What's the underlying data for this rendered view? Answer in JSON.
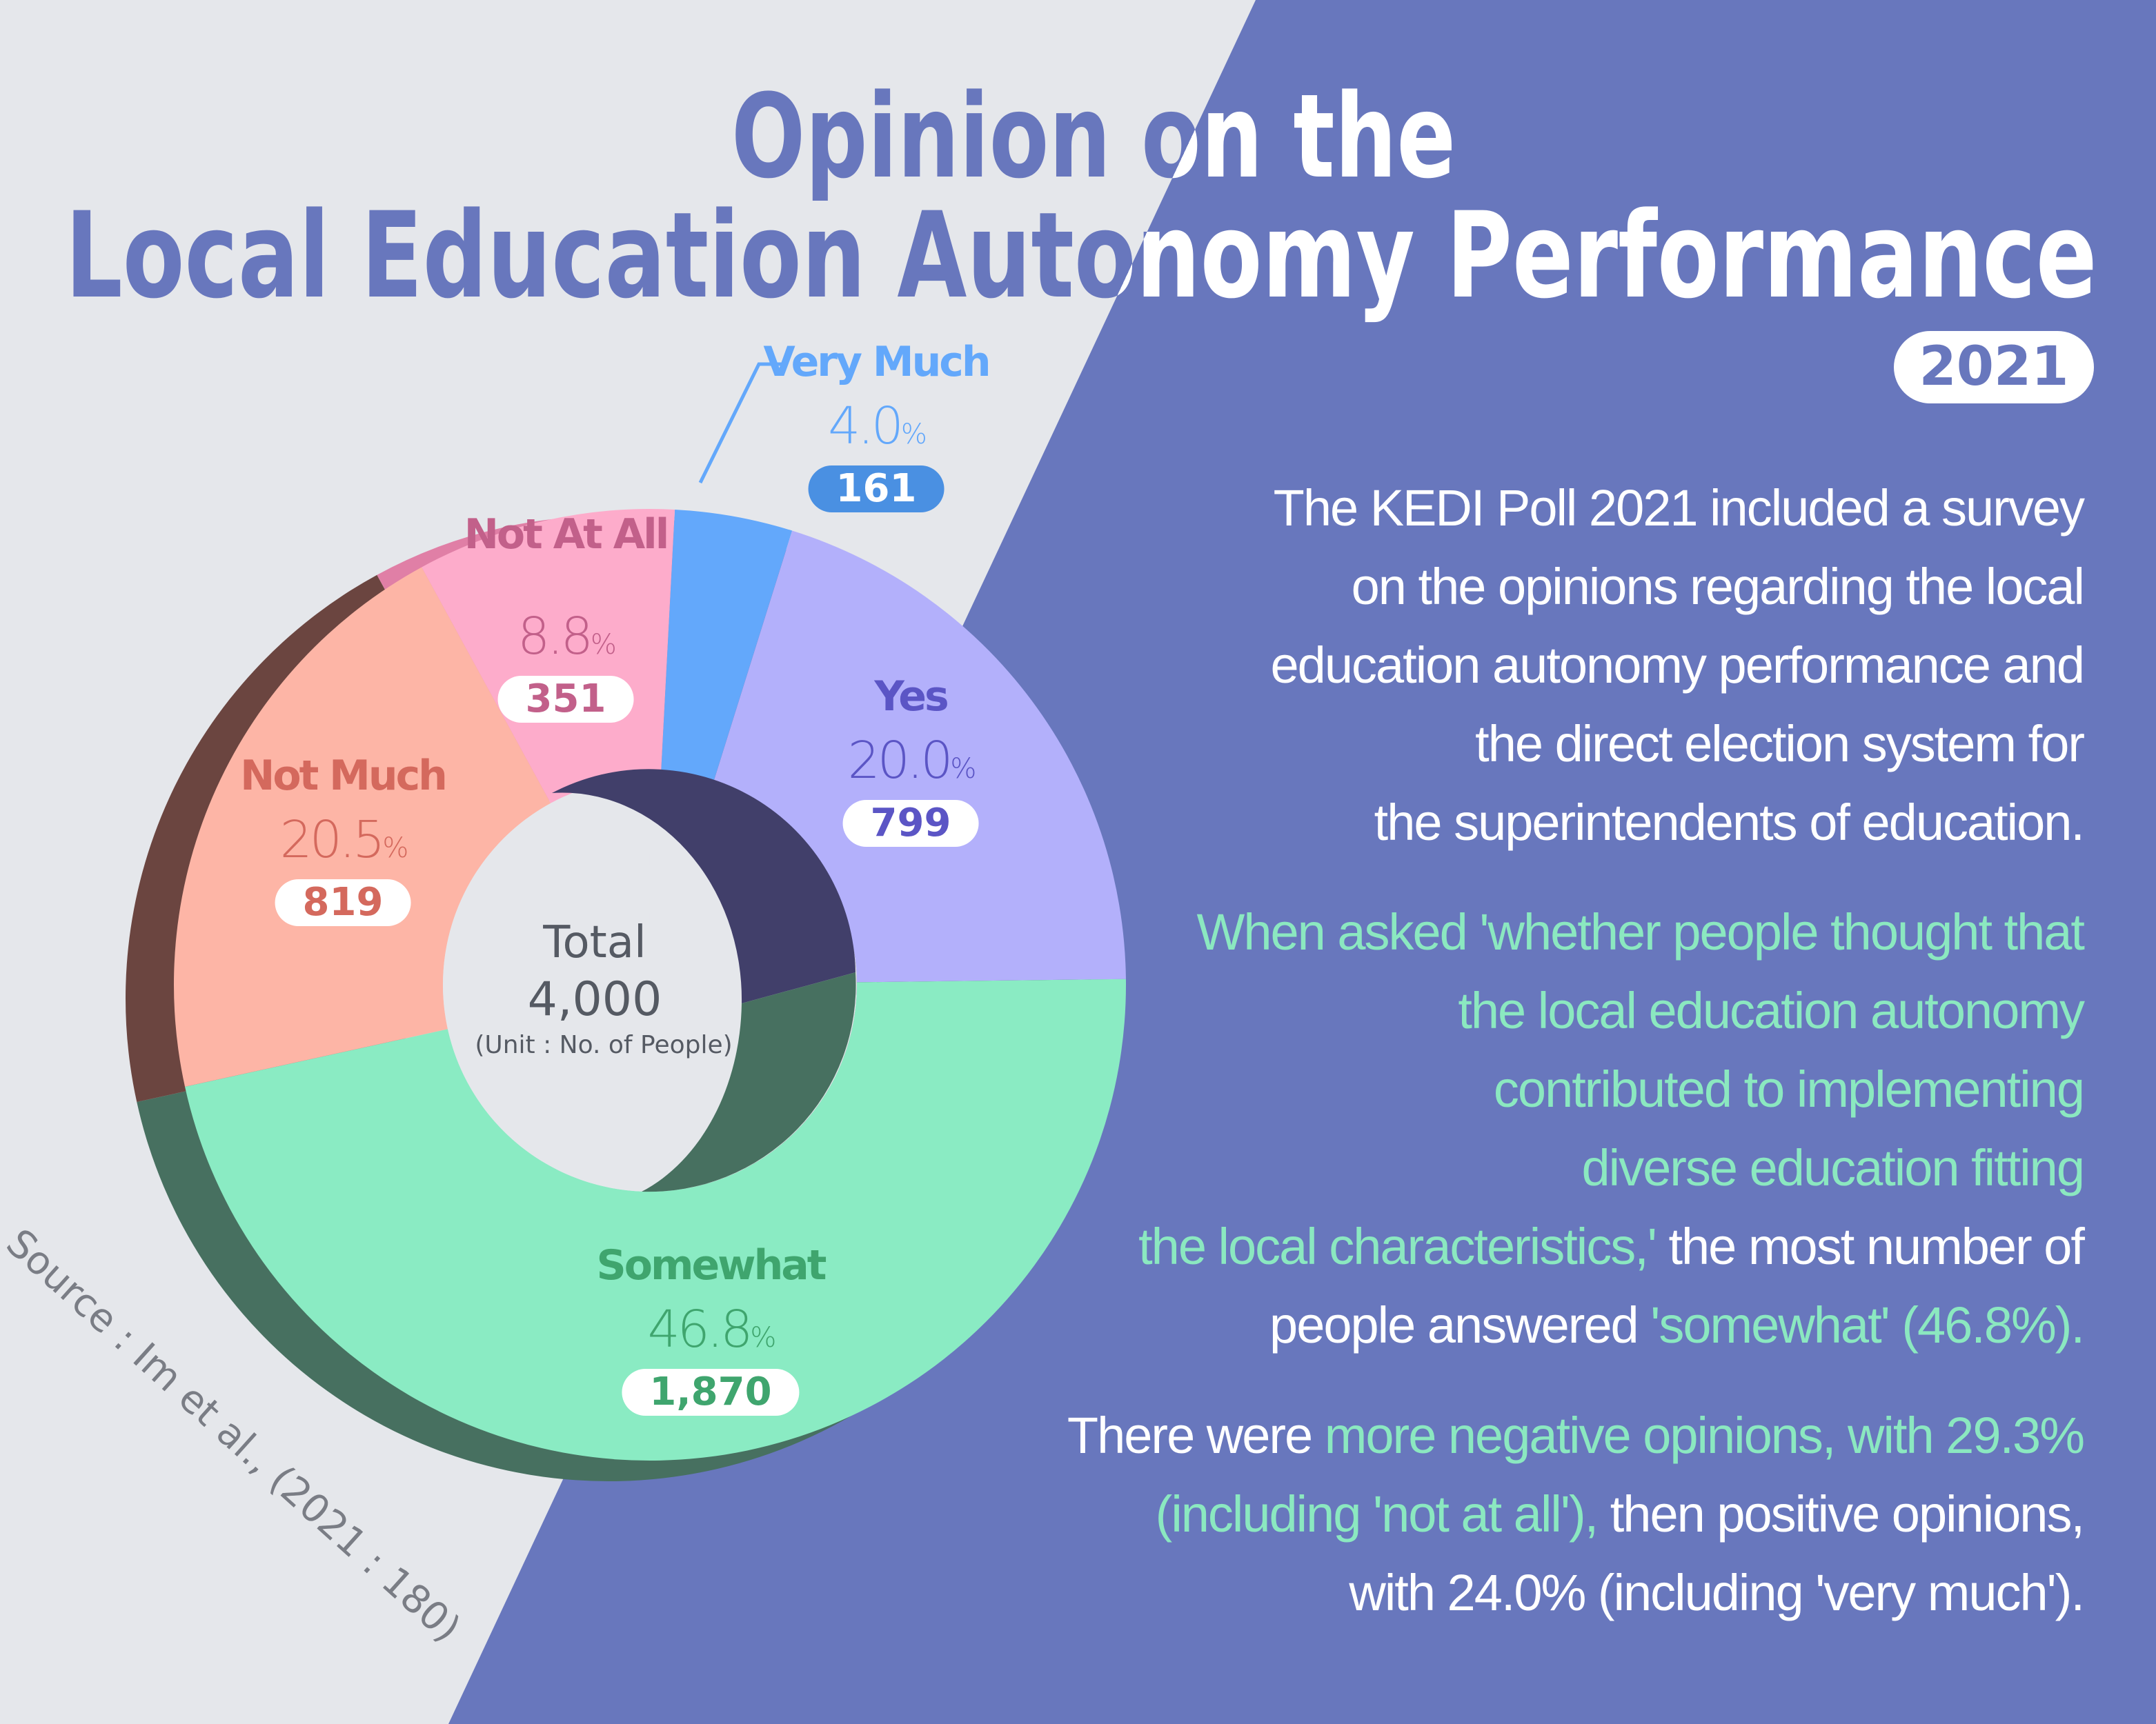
{
  "title": {
    "line1": "Opinion on the",
    "line2": "Local Education Autonomy Performance",
    "year": "2021"
  },
  "paragraph1": [
    "The KEDI Poll 2021 included a survey",
    "on the opinions regarding the local",
    "education autonomy performance and",
    "the direct election system for",
    "the superintendents of education."
  ],
  "paragraph2": {
    "lines": [
      "When asked 'whether people thought that",
      "the local education autonomy",
      "contributed to implementing",
      "diverse education fitting"
    ],
    "line5_green": "the local characteristics,'",
    "line5_white": " the most number of",
    "line6_white": "people answered ",
    "line6_green": "'somewhat' (46.8%)."
  },
  "paragraph3": {
    "l1_white": "There were ",
    "l1_green": "more negative opinions, with 29.3%",
    "l2_green": "(including 'not at all'),",
    "l2_white": " then positive opinions,",
    "l3": "with 24.0% (including 'very much')."
  },
  "source": "Source : Im et al., (2021 : 180)",
  "colors": {
    "background_purple": "#6877bd",
    "green": "#8be8c0"
  },
  "chart_data": {
    "type": "pie",
    "donut": true,
    "title": "Opinion on the Local Education Autonomy Performance 2021",
    "center": {
      "label": "Total",
      "value": "4,000",
      "unit": "(Unit : No. of People)"
    },
    "slices": [
      {
        "label": "Very Much",
        "percent": 4.0,
        "percent_text": "4.0",
        "count": 161,
        "count_text": "161",
        "color": "#63a8fb",
        "dark": "#3e6fb0",
        "text": "#63a8fb"
      },
      {
        "label": "Yes",
        "percent": 20.0,
        "percent_text": "20.0",
        "count": 799,
        "count_text": "799",
        "color": "#b3b0fb",
        "dark": "#413f6a",
        "text": "#5b55c5"
      },
      {
        "label": "Somewhat",
        "percent": 46.8,
        "percent_text": "46.8",
        "count": 1870,
        "count_text": "1,870",
        "color": "#8aebc3",
        "dark": "#477060",
        "text": "#3fa56e"
      },
      {
        "label": "Not Much",
        "percent": 20.5,
        "percent_text": "20.5",
        "count": 819,
        "count_text": "819",
        "color": "#fdb5a6",
        "dark": "#6b4540",
        "text": "#d4695d"
      },
      {
        "label": "Not At All",
        "percent": 8.8,
        "percent_text": "8.8",
        "count": 351,
        "count_text": "351",
        "color": "#fdaccb",
        "dark": "#e07fa6",
        "text": "#c2608a"
      }
    ]
  }
}
